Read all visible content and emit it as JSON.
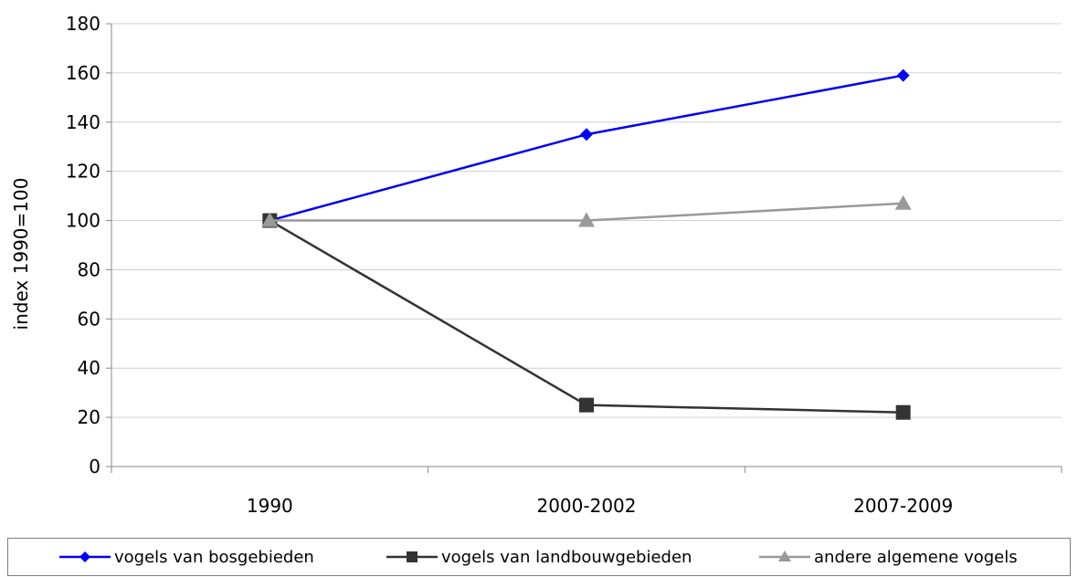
{
  "chart_data": {
    "type": "line",
    "categories": [
      "1990",
      "2000-2002",
      "2007-2009"
    ],
    "ylabel": "index 1990=100",
    "ylim": [
      0,
      180
    ],
    "yticks": [
      0,
      20,
      40,
      60,
      80,
      100,
      120,
      140,
      160,
      180
    ],
    "grid": true,
    "legend_position": "bottom",
    "series": [
      {
        "name": "vogels van bosgebieden",
        "values": [
          100,
          135,
          159
        ],
        "color": "#0000ee",
        "marker": "diamond"
      },
      {
        "name": "vogels van landbouwgebieden",
        "values": [
          100,
          25,
          22
        ],
        "color": "#333333",
        "marker": "square"
      },
      {
        "name": "andere algemene vogels",
        "values": [
          100,
          100,
          107
        ],
        "color": "#999999",
        "marker": "triangle"
      }
    ]
  }
}
